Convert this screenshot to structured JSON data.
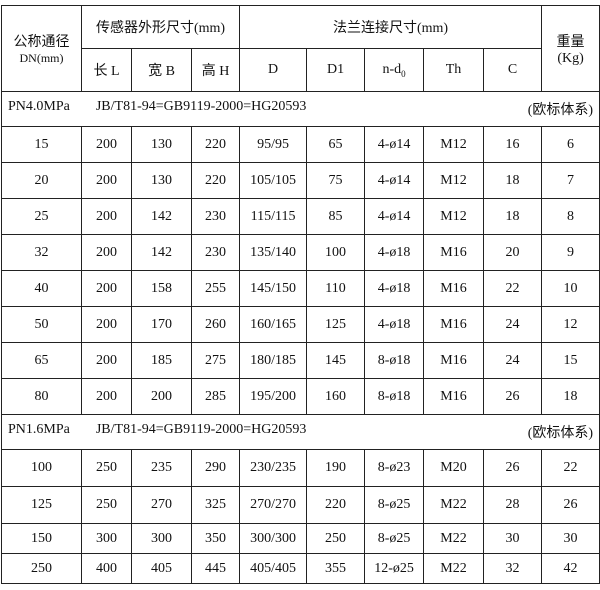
{
  "header": {
    "nominal_diameter": "公称通径",
    "nominal_diameter_unit": "DN(mm)",
    "sensor_dims": "传感器外形尺寸(mm)",
    "flange_dims": "法兰连接尺寸(mm)",
    "weight": "重量",
    "weight_unit": "(Kg)",
    "columns": [
      "长 L",
      "宽 B",
      "高 H",
      "D",
      "D1",
      "n-d",
      "Th",
      "C"
    ],
    "nd_subscript": "0"
  },
  "sections": [
    {
      "pressure": "PN4.0MPa",
      "standard": "JB/T81-94=GB9119-2000=HG20593",
      "system": "(欧标体系)",
      "rows": [
        [
          "15",
          "200",
          "130",
          "220",
          "95/95",
          "65",
          "4-ø14",
          "M12",
          "16",
          "6"
        ],
        [
          "20",
          "200",
          "130",
          "220",
          "105/105",
          "75",
          "4-ø14",
          "M12",
          "18",
          "7"
        ],
        [
          "25",
          "200",
          "142",
          "230",
          "115/115",
          "85",
          "4-ø14",
          "M12",
          "18",
          "8"
        ],
        [
          "32",
          "200",
          "142",
          "230",
          "135/140",
          "100",
          "4-ø18",
          "M16",
          "20",
          "9"
        ],
        [
          "40",
          "200",
          "158",
          "255",
          "145/150",
          "110",
          "4-ø18",
          "M16",
          "22",
          "10"
        ],
        [
          "50",
          "200",
          "170",
          "260",
          "160/165",
          "125",
          "4-ø18",
          "M16",
          "24",
          "12"
        ],
        [
          "65",
          "200",
          "185",
          "275",
          "180/185",
          "145",
          "8-ø18",
          "M16",
          "24",
          "15"
        ],
        [
          "80",
          "200",
          "200",
          "285",
          "195/200",
          "160",
          "8-ø18",
          "M16",
          "26",
          "18"
        ]
      ]
    },
    {
      "pressure": "PN1.6MPa",
      "standard": "JB/T81-94=GB9119-2000=HG20593",
      "system": "(欧标体系)",
      "rows": [
        [
          "100",
          "250",
          "235",
          "290",
          "230/235",
          "190",
          "8-ø23",
          "M20",
          "26",
          "22"
        ],
        [
          "125",
          "250",
          "270",
          "325",
          "270/270",
          "220",
          "8-ø25",
          "M22",
          "28",
          "26"
        ],
        [
          "150",
          "300",
          "300",
          "350",
          "300/300",
          "250",
          "8-ø25",
          "M22",
          "30",
          "30"
        ],
        [
          "250",
          "400",
          "405",
          "445",
          "405/405",
          "355",
          "12-ø25",
          "M22",
          "32",
          "42"
        ]
      ]
    }
  ]
}
